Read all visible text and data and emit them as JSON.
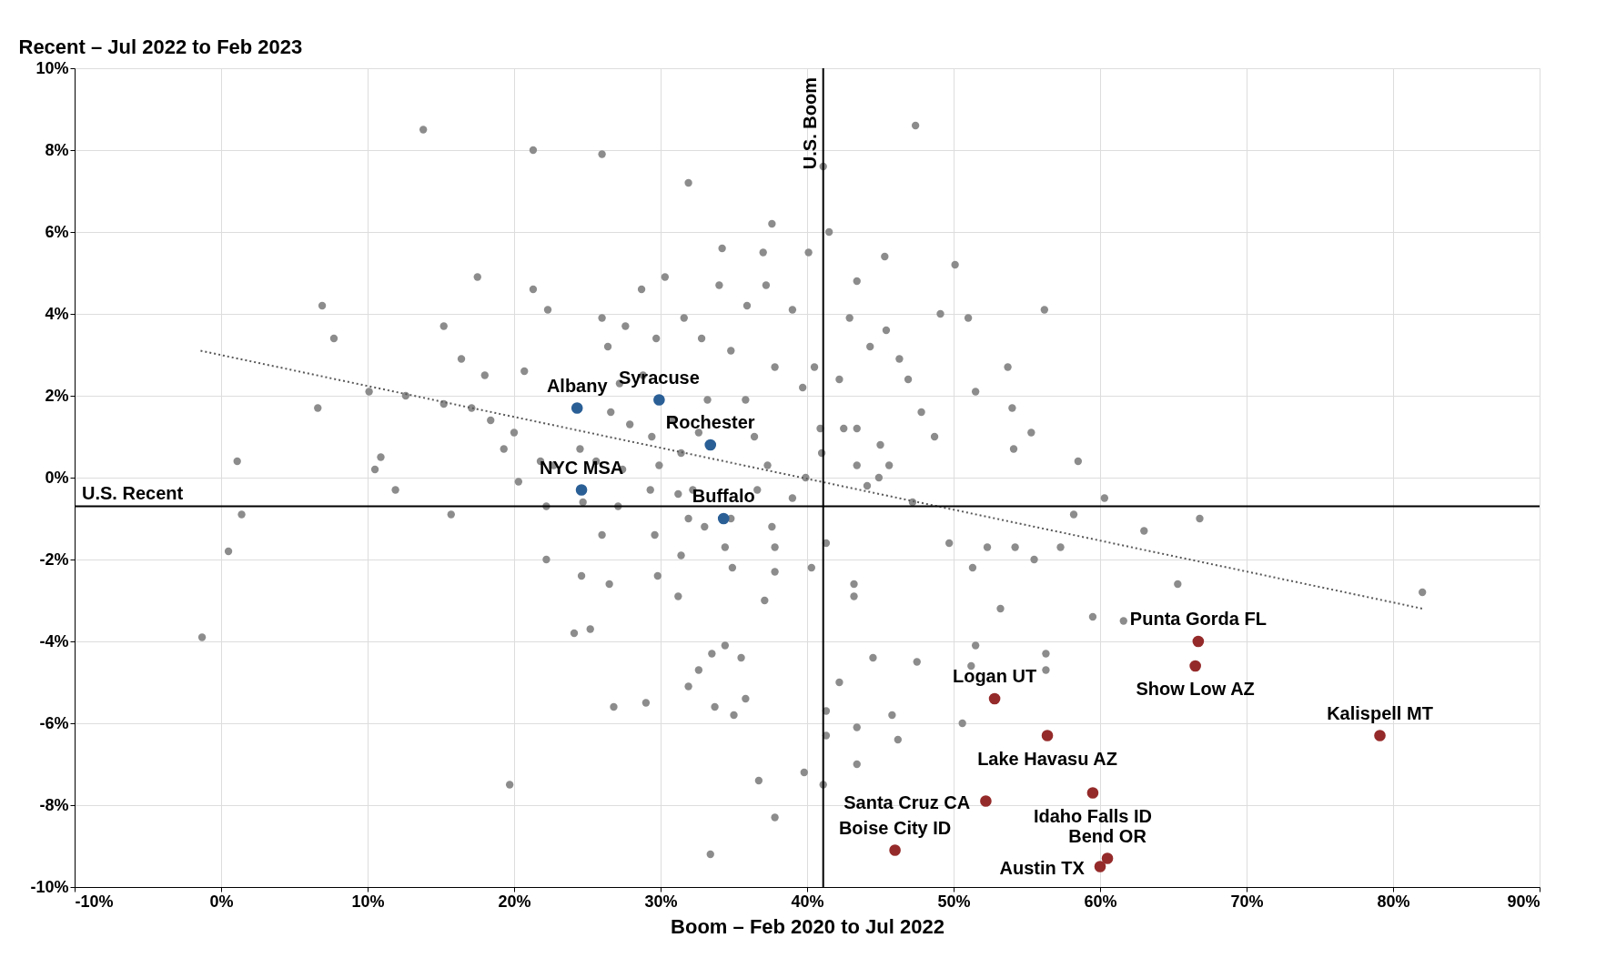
{
  "chart_data": {
    "type": "scatter",
    "xlabel": "Boom – Feb 2020 to Jul 2022",
    "ylabel": "Recent – Jul 2022 to Feb 2023",
    "xlim": [
      -10,
      90
    ],
    "ylim": [
      -10,
      10
    ],
    "xticks": [
      {
        "value": -10,
        "label": "-10%"
      },
      {
        "value": 0,
        "label": "0%"
      },
      {
        "value": 10,
        "label": "10%"
      },
      {
        "value": 20,
        "label": "20%"
      },
      {
        "value": 30,
        "label": "30%"
      },
      {
        "value": 40,
        "label": "40%"
      },
      {
        "value": 50,
        "label": "50%"
      },
      {
        "value": 60,
        "label": "60%"
      },
      {
        "value": 70,
        "label": "70%"
      },
      {
        "value": 80,
        "label": "80%"
      },
      {
        "value": 90,
        "label": "90%"
      }
    ],
    "yticks": [
      {
        "value": -10,
        "label": "-10%"
      },
      {
        "value": -8,
        "label": "-8%"
      },
      {
        "value": -6,
        "label": "-6%"
      },
      {
        "value": -4,
        "label": "-4%"
      },
      {
        "value": -2,
        "label": "-2%"
      },
      {
        "value": 0,
        "label": "0%"
      },
      {
        "value": 2,
        "label": "2%"
      },
      {
        "value": 4,
        "label": "4%"
      },
      {
        "value": 6,
        "label": "6%"
      },
      {
        "value": 8,
        "label": "8%"
      },
      {
        "value": 10,
        "label": "10%"
      }
    ],
    "grid": true,
    "marker": "circle",
    "series": [
      {
        "type": "scatter",
        "color": "#8c8c8c",
        "x": [
          13.8,
          21.3,
          26.0,
          31.9,
          47.4,
          41.1,
          37.6,
          41.5,
          34.2,
          40.1,
          37.0,
          45.3,
          50.1,
          30.3,
          17.5,
          6.9,
          21.3,
          28.7,
          34.0,
          37.2,
          43.4,
          56.2,
          49.1,
          51.0,
          7.7,
          15.2,
          22.3,
          26.0,
          31.6,
          35.9,
          39.0,
          42.9,
          45.4,
          16.4,
          20.7,
          18.0,
          10.1,
          12.6,
          6.6,
          15.2,
          17.1,
          18.4,
          20.0,
          19.3,
          10.9,
          10.5,
          1.1,
          11.9,
          0.5,
          1.4,
          -1.3,
          15.7,
          20.3,
          21.8,
          22.2,
          22.2,
          19.7,
          24.1,
          25.2,
          26.5,
          24.6,
          26.8,
          29.0,
          29.8,
          31.2,
          32.6,
          33.5,
          34.4,
          35.5,
          35.8,
          33.7,
          31.9,
          35.0,
          36.7,
          37.8,
          33.4,
          39.8,
          41.1,
          41.3,
          41.3,
          42.2,
          43.4,
          43.4,
          44.5,
          45.8,
          46.2,
          47.5,
          50.6,
          51.5,
          51.2,
          56.3,
          56.3,
          59.5,
          61.6,
          65.3,
          66.8,
          63.0,
          58.2,
          58.5,
          60.3,
          53.7,
          51.5,
          54.0,
          55.3,
          54.1,
          46.3,
          44.3,
          46.9,
          47.8,
          48.7,
          45.0,
          44.9,
          44.1,
          47.2,
          49.7,
          52.3,
          54.2,
          55.5,
          51.3,
          53.2,
          57.3,
          43.2,
          43.2,
          40.3,
          41.3,
          37.8,
          34.9,
          34.8,
          36.6,
          39.0,
          39.9,
          41.0,
          42.5,
          40.9,
          43.4,
          45.6,
          39.7,
          40.5,
          42.2,
          43.4,
          37.3,
          36.4,
          37.8,
          34.8,
          32.8,
          29.7,
          27.6,
          26.4,
          28.8,
          27.2,
          26.6,
          27.9,
          29.4,
          31.4,
          32.6,
          35.8,
          33.2,
          30.8,
          25.6,
          24.5,
          22.7,
          27.4,
          29.9,
          32.2,
          29.3,
          27.1,
          24.7,
          31.2,
          31.9,
          31.4,
          29.6,
          33.0,
          37.6,
          34.4,
          37.8,
          26.0,
          37.1,
          82.0
        ],
        "values": [
          8.5,
          8.0,
          7.9,
          7.2,
          8.6,
          7.6,
          6.2,
          6.0,
          5.6,
          5.5,
          5.5,
          5.4,
          5.2,
          4.9,
          4.9,
          4.2,
          4.6,
          4.6,
          4.7,
          4.7,
          4.8,
          4.1,
          4.0,
          3.9,
          3.4,
          3.7,
          4.1,
          3.9,
          3.9,
          4.2,
          4.1,
          3.9,
          3.6,
          2.9,
          2.6,
          2.5,
          2.1,
          2.0,
          1.7,
          1.8,
          1.7,
          1.4,
          1.1,
          0.7,
          0.5,
          0.2,
          0.4,
          -0.3,
          -1.8,
          -0.9,
          -3.9,
          -0.9,
          -0.1,
          0.4,
          -0.7,
          -2.0,
          -7.5,
          -3.8,
          -3.7,
          -2.6,
          -2.4,
          -5.6,
          -5.5,
          -2.4,
          -2.9,
          -4.7,
          -4.3,
          -4.1,
          -4.4,
          -5.4,
          -5.6,
          -5.1,
          -5.8,
          -7.4,
          -8.3,
          -9.2,
          -7.2,
          -7.5,
          -6.3,
          -5.7,
          -5.0,
          -7.0,
          -6.1,
          -4.4,
          -5.8,
          -6.4,
          -4.5,
          -6.0,
          -4.1,
          -4.6,
          -4.3,
          -4.7,
          -3.4,
          -3.5,
          -2.6,
          -1.0,
          -1.3,
          -0.9,
          0.4,
          -0.5,
          2.7,
          2.1,
          1.7,
          1.1,
          0.7,
          2.9,
          3.2,
          2.4,
          1.6,
          1.0,
          0.8,
          0.0,
          -0.2,
          -0.6,
          -1.6,
          -1.7,
          -1.7,
          -2.0,
          -2.2,
          -3.2,
          -1.7,
          -2.6,
          -2.9,
          -2.2,
          -1.6,
          -2.3,
          -2.2,
          -1.0,
          -0.3,
          -0.5,
          0.0,
          0.6,
          1.2,
          1.2,
          0.3,
          0.3,
          2.2,
          2.7,
          2.4,
          1.2,
          0.3,
          1.0,
          2.7,
          3.1,
          3.4,
          3.4,
          3.7,
          3.2,
          2.5,
          2.3,
          1.6,
          1.3,
          1.0,
          0.6,
          1.1,
          1.9,
          1.9,
          1.4,
          0.4,
          0.7,
          0.3,
          0.2,
          0.3,
          -0.3,
          -0.3,
          -0.7,
          -0.6,
          -0.4,
          -1.0,
          -1.9,
          -1.4,
          -1.2,
          -1.2,
          -1.7,
          -1.7,
          -1.4,
          -3.0,
          -2.8
        ]
      },
      {
        "type": "scatter",
        "color": "#2a5f96",
        "x": [
          24.3,
          29.9,
          33.4,
          24.6,
          34.3
        ],
        "values": [
          1.7,
          1.9,
          0.8,
          -0.3,
          -1.0
        ]
      },
      {
        "type": "scatter",
        "color": "#952a2a",
        "x": [
          66.7,
          66.5,
          52.8,
          56.4,
          79.1,
          59.5,
          52.2,
          46.0,
          60.5,
          60.0
        ],
        "values": [
          -4.0,
          -4.6,
          -5.4,
          -6.3,
          -6.3,
          -7.7,
          -7.9,
          -9.1,
          -9.3,
          -9.5
        ]
      },
      {
        "type": "line",
        "color": "#595959",
        "line_style": "dotted",
        "marker": "none",
        "x": [
          -1.4,
          82.0
        ],
        "values": [
          3.1,
          -3.2
        ]
      }
    ],
    "ref_lines": [
      {
        "axis": "x",
        "value": 41.1,
        "label": "U.S. Boom",
        "color": "#000000"
      },
      {
        "axis": "y",
        "value": -0.7,
        "label": "U.S. Recent",
        "color": "#000000"
      }
    ],
    "annotations": [
      {
        "text": "Albany",
        "x": 24.3,
        "y": 1.7
      },
      {
        "text": "Syracuse",
        "x": 29.9,
        "y": 1.9
      },
      {
        "text": "Rochester",
        "x": 33.4,
        "y": 0.8
      },
      {
        "text": "NYC MSA",
        "x": 24.6,
        "y": -0.3
      },
      {
        "text": "Buffalo",
        "x": 34.3,
        "y": -1.0
      },
      {
        "text": "Punta Gorda FL",
        "x": 66.7,
        "y": -4.0
      },
      {
        "text": "Show Low AZ",
        "x": 66.5,
        "y": -4.6
      },
      {
        "text": "Logan UT",
        "x": 52.8,
        "y": -5.4
      },
      {
        "text": "Lake Havasu AZ",
        "x": 56.4,
        "y": -6.3
      },
      {
        "text": "Kalispell MT",
        "x": 79.1,
        "y": -6.3
      },
      {
        "text": "Idaho Falls ID",
        "x": 59.5,
        "y": -7.7
      },
      {
        "text": "Santa Cruz CA",
        "x": 52.2,
        "y": -7.9
      },
      {
        "text": "Boise City ID",
        "x": 46.0,
        "y": -9.1
      },
      {
        "text": "Bend OR",
        "x": 60.5,
        "y": -9.3
      },
      {
        "text": "Austin TX",
        "x": 60.0,
        "y": -9.5
      }
    ]
  }
}
